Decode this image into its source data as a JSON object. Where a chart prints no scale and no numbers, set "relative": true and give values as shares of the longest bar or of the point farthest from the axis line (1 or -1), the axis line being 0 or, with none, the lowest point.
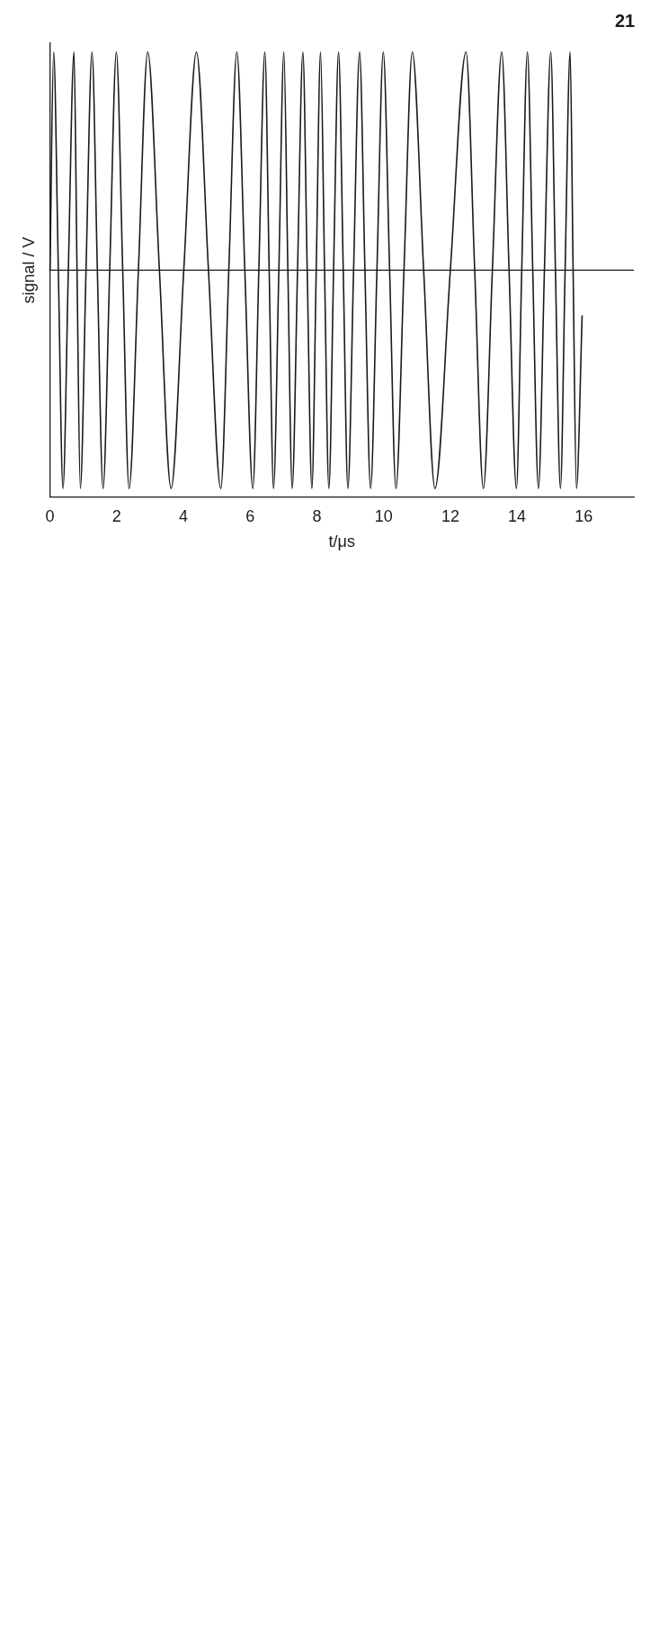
{
  "chart_data": {
    "type": "line",
    "xlabel": "t/μs",
    "ylabel": "signal / V",
    "annotations": [
      "21"
    ],
    "relative": true,
    "xlim": [
      0,
      17.5
    ],
    "xticks": [
      0,
      2,
      4,
      6,
      8,
      10,
      12,
      14,
      16
    ],
    "x": [
      0,
      0.11,
      0.25,
      0.39,
      0.55,
      0.72,
      0.81,
      0.91,
      1.08,
      1.26,
      1.42,
      1.59,
      1.79,
      1.99,
      2.18,
      2.37,
      2.65,
      2.93,
      3.28,
      3.63,
      4.01,
      4.39,
      4.75,
      5.12,
      5.36,
      5.6,
      5.84,
      6.08,
      6.26,
      6.44,
      6.57,
      6.7,
      6.86,
      7.01,
      7.13,
      7.26,
      7.42,
      7.58,
      7.71,
      7.85,
      7.98,
      8.11,
      8.23,
      8.36,
      8.5,
      8.65,
      8.79,
      8.93,
      9.1,
      9.28,
      9.44,
      9.61,
      9.8,
      9.99,
      10.18,
      10.37,
      10.61,
      10.86,
      11.2,
      11.54,
      12.0,
      12.47,
      12.73,
      12.99,
      13.26,
      13.54,
      13.76,
      13.98,
      14.14,
      14.31,
      14.47,
      14.64,
      14.82,
      15.01,
      15.15,
      15.3,
      15.44,
      15.59,
      15.68,
      15.78,
      15.95
    ],
    "series": [
      {
        "color": "#1a1a1a",
        "values": [
          0,
          1,
          0,
          -1,
          0,
          1,
          0,
          -1,
          0,
          1,
          0,
          -1,
          0,
          1,
          0,
          -1,
          0,
          1,
          0,
          -1,
          0,
          1,
          0,
          -1,
          0,
          1,
          0,
          -1,
          0,
          1,
          0,
          -1,
          0,
          1,
          0,
          -1,
          0,
          1,
          0,
          -1,
          0,
          1,
          0,
          -1,
          0,
          1,
          0,
          -1,
          0,
          1,
          0,
          -1,
          0,
          1,
          0,
          -1,
          0,
          1,
          0,
          -1,
          0,
          1,
          0,
          -1,
          0,
          1,
          0,
          -1,
          0,
          1,
          0,
          -1,
          0,
          1,
          0,
          -1,
          0,
          1,
          0,
          -1,
          -0.21
        ]
      }
    ]
  }
}
